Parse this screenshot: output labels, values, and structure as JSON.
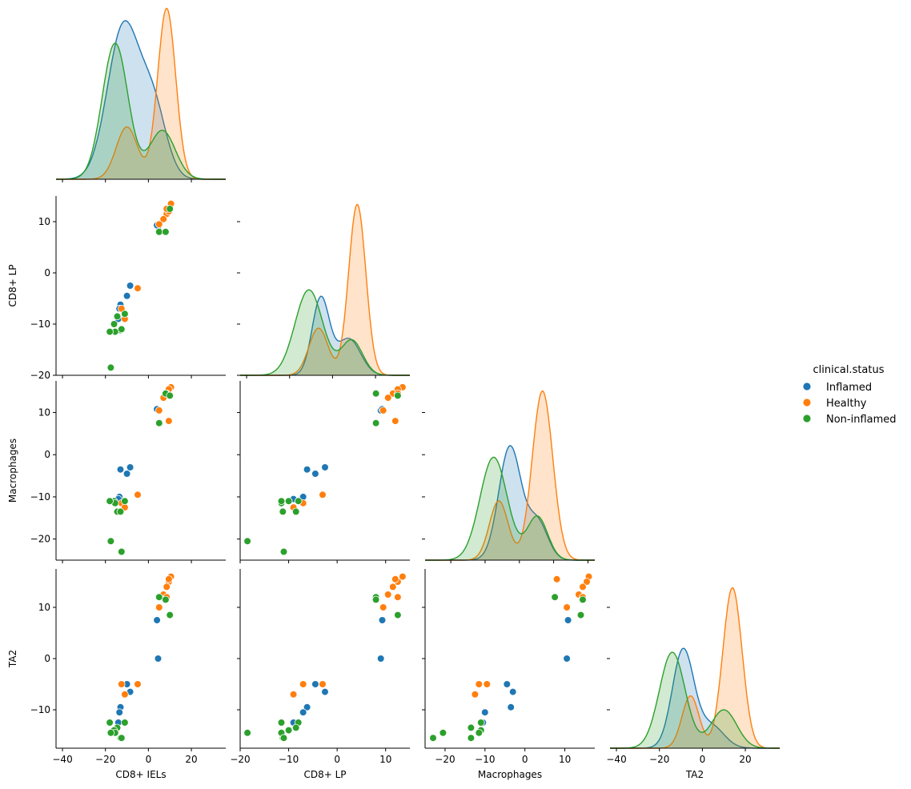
{
  "chart_data": {
    "type": "scatter",
    "variables": [
      "CD8+ IELs",
      "CD8+ LP",
      "Macrophages",
      "TA2"
    ],
    "axis_ranges": {
      "CD8+ IELs": [
        -43,
        36
      ],
      "CD8+ LP": [
        -20,
        15
      ],
      "Macrophages": [
        -25,
        17.5
      ],
      "TA2": [
        -17.5,
        17.5
      ]
    },
    "axis_ticks": {
      "CD8+ IELs": [
        -40,
        -20,
        0,
        20
      ],
      "CD8+ LP": [
        -20,
        -10,
        0,
        10
      ],
      "Macrophages": [
        -20,
        -10,
        0,
        10
      ],
      "TA2": [
        -10,
        0,
        10
      ]
    },
    "diag_ranges": {
      "CD8+ IELs": [
        -43,
        36
      ],
      "CD8+ LP": [
        -43,
        36
      ],
      "Macrophages": [
        -55,
        44
      ],
      "TA2": [
        -43,
        36
      ]
    },
    "diag_ticks": {
      "CD8+ IELs": [
        -40,
        -20,
        0,
        20
      ],
      "CD8+ LP": [
        -40,
        -20,
        0,
        20
      ],
      "Macrophages": [
        -40,
        -20,
        0,
        20,
        40
      ],
      "TA2": [
        -40,
        -20,
        0,
        20
      ]
    },
    "legend": {
      "title": "clinical.status",
      "placement": "right",
      "entries": [
        "Inflamed",
        "Healthy",
        "Non-inflamed"
      ]
    },
    "colors": {
      "Inflamed": "#1f77b4",
      "Healthy": "#ff7f0e",
      "Non-inflamed": "#2ca02c"
    },
    "grid": false,
    "kde": [
      {
        "panel": "CD8+ IELs",
        "series": [
          {
            "name": "Inflamed",
            "peaks": [
              [
                -11.5,
                7.5,
                0.88
              ],
              [
                2.5,
                6.0,
                0.38
              ]
            ]
          },
          {
            "name": "Healthy",
            "peaks": [
              [
                -10,
                5.0,
                0.3
              ],
              [
                8.5,
                4.2,
                0.98
              ]
            ]
          },
          {
            "name": "Non-inflamed",
            "peaks": [
              [
                -15.5,
                6.0,
                0.78
              ],
              [
                6.5,
                6.0,
                0.28
              ]
            ]
          }
        ]
      },
      {
        "panel": "CD8+ LP",
        "series": [
          {
            "name": "Inflamed",
            "peaks": [
              [
                -5.5,
                4.0,
                0.44
              ],
              [
                7.5,
                5.5,
                0.21
              ]
            ]
          },
          {
            "name": "Healthy",
            "peaks": [
              [
                -6.5,
                4.5,
                0.27
              ],
              [
                11.5,
                4.0,
                0.98
              ]
            ]
          },
          {
            "name": "Non-inflamed",
            "peaks": [
              [
                -11,
                6.5,
                0.49
              ],
              [
                9.0,
                5.0,
                0.2
              ]
            ]
          }
        ]
      },
      {
        "panel": "Macrophages",
        "series": [
          {
            "name": "Inflamed",
            "peaks": [
              [
                -5.5,
                6.5,
                0.65
              ],
              [
                10.5,
                6.0,
                0.22
              ]
            ]
          },
          {
            "name": "Healthy",
            "peaks": [
              [
                -12,
                5.5,
                0.34
              ],
              [
                13.5,
                6.0,
                0.97
              ]
            ]
          },
          {
            "name": "Non-inflamed",
            "peaks": [
              [
                -15,
                8.0,
                0.59
              ],
              [
                10.5,
                6.0,
                0.25
              ]
            ]
          }
        ]
      },
      {
        "panel": "TA2",
        "series": [
          {
            "name": "Inflamed",
            "peaks": [
              [
                -9,
                5.0,
                0.56
              ],
              [
                4.0,
                6.0,
                0.13
              ]
            ]
          },
          {
            "name": "Healthy",
            "peaks": [
              [
                -5.5,
                4.0,
                0.3
              ],
              [
                14.0,
                4.5,
                0.92
              ]
            ]
          },
          {
            "name": "Non-inflamed",
            "peaks": [
              [
                -14,
                6.0,
                0.55
              ],
              [
                10.0,
                6.0,
                0.22
              ]
            ]
          }
        ]
      }
    ],
    "points": [
      {
        "status": "Inflamed",
        "values": [
          4.5,
          9.0,
          10.5,
          0.0
        ]
      },
      {
        "status": "Inflamed",
        "values": [
          4.0,
          9.3,
          10.8,
          7.5
        ]
      },
      {
        "status": "Inflamed",
        "values": [
          -8.5,
          -2.5,
          -3.0,
          -6.5
        ]
      },
      {
        "status": "Inflamed",
        "values": [
          -10.0,
          -4.5,
          -4.5,
          -5.0
        ]
      },
      {
        "status": "Inflamed",
        "values": [
          -13.0,
          -6.2,
          -3.5,
          -9.5
        ]
      },
      {
        "status": "Inflamed",
        "values": [
          -13.5,
          -7.0,
          -10.0,
          -10.5
        ]
      },
      {
        "status": "Inflamed",
        "values": [
          -14.0,
          -9.0,
          -10.5,
          -12.5
        ]
      },
      {
        "status": "Healthy",
        "values": [
          10.5,
          13.5,
          16.0,
          16.0
        ]
      },
      {
        "status": "Healthy",
        "values": [
          9.5,
          12.5,
          15.5,
          15.0
        ]
      },
      {
        "status": "Healthy",
        "values": [
          8.5,
          11.5,
          14.5,
          14.0
        ]
      },
      {
        "status": "Healthy",
        "values": [
          7.0,
          10.5,
          13.5,
          12.5
        ]
      },
      {
        "status": "Healthy",
        "values": [
          5.0,
          9.5,
          10.5,
          10.0
        ]
      },
      {
        "status": "Healthy",
        "values": [
          9.5,
          12.0,
          8.0,
          15.5
        ]
      },
      {
        "status": "Healthy",
        "values": [
          8.5,
          12.5,
          14.5,
          12.0
        ]
      },
      {
        "status": "Healthy",
        "values": [
          -5.0,
          -3.0,
          -9.5,
          -5.0
        ]
      },
      {
        "status": "Healthy",
        "values": [
          -12.5,
          -7.0,
          -11.5,
          -5.0
        ]
      },
      {
        "status": "Healthy",
        "values": [
          -11.0,
          -9.0,
          -12.5,
          -7.0
        ]
      },
      {
        "status": "Non-inflamed",
        "values": [
          5.0,
          8.0,
          7.5,
          12.0
        ]
      },
      {
        "status": "Non-inflamed",
        "values": [
          8.0,
          8.0,
          14.5,
          11.5
        ]
      },
      {
        "status": "Non-inflamed",
        "values": [
          10.0,
          12.5,
          14.0,
          8.5
        ]
      },
      {
        "status": "Non-inflamed",
        "values": [
          -11.0,
          -8.0,
          -11.0,
          -12.5
        ]
      },
      {
        "status": "Non-inflamed",
        "values": [
          -14.5,
          -8.5,
          -13.5,
          -13.5
        ]
      },
      {
        "status": "Non-inflamed",
        "values": [
          -16.0,
          -10.0,
          -11.0,
          -14.0
        ]
      },
      {
        "status": "Non-inflamed",
        "values": [
          -13.0,
          -11.2,
          -13.5,
          -15.5
        ]
      },
      {
        "status": "Non-inflamed",
        "values": [
          -15.5,
          -11.5,
          -11.5,
          -14.5
        ]
      },
      {
        "status": "Non-inflamed",
        "values": [
          -18.0,
          -11.5,
          -11.0,
          -12.5
        ]
      },
      {
        "status": "Non-inflamed",
        "values": [
          -17.5,
          -18.5,
          -20.5,
          -14.5
        ]
      },
      {
        "status": "Non-inflamed",
        "values": [
          -12.5,
          -11.0,
          -23.0,
          -15.5
        ]
      }
    ]
  }
}
